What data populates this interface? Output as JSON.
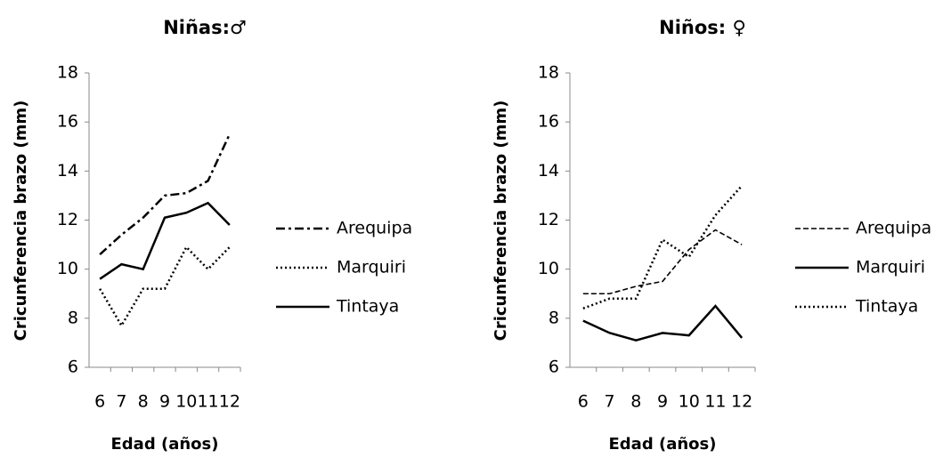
{
  "chart_data": [
    {
      "type": "line",
      "title": "Niñas:♂",
      "ylabel": "Cricunferencia brazo (mm)",
      "xlabel": "Edad (años)",
      "categories": [
        "6",
        "7",
        "8",
        "9",
        "10",
        "11",
        "12"
      ],
      "ylim": [
        6,
        18
      ],
      "yticks": [
        6,
        8,
        10,
        12,
        14,
        16,
        18
      ],
      "grid": false,
      "legend": "right",
      "series": [
        {
          "name": "Arequipa",
          "color": "#000000",
          "line_style": "dashdot",
          "values": [
            10.6,
            11.4,
            12.1,
            13.0,
            13.1,
            13.6,
            15.5
          ]
        },
        {
          "name": "Marquiri",
          "color": "#000000",
          "line_style": "dotted",
          "values": [
            9.2,
            7.7,
            9.2,
            9.2,
            10.9,
            10.0,
            10.9
          ]
        },
        {
          "name": "Tintaya",
          "color": "#000000",
          "line_style": "solid",
          "values": [
            9.6,
            10.2,
            10.0,
            12.1,
            12.3,
            12.7,
            11.8
          ]
        }
      ]
    },
    {
      "type": "line",
      "title": "Niños: ♀",
      "ylabel": "Cricunferencia brazo (mm)",
      "xlabel": "Edad (años)",
      "categories": [
        "6",
        "7",
        "8",
        "9",
        "10",
        "11",
        "12"
      ],
      "ylim": [
        6,
        18
      ],
      "yticks": [
        6,
        8,
        10,
        12,
        14,
        16,
        18
      ],
      "grid": false,
      "legend": "right",
      "series": [
        {
          "name": "Arequipa",
          "color": "#000000",
          "line_style": "dashed",
          "values": [
            9.0,
            9.0,
            9.3,
            9.5,
            10.8,
            11.6,
            11.0
          ]
        },
        {
          "name": "Marquiri",
          "color": "#000000",
          "line_style": "solid",
          "values": [
            7.9,
            7.4,
            7.1,
            7.4,
            7.3,
            8.5,
            7.2
          ]
        },
        {
          "name": "Tintaya",
          "color": "#000000",
          "line_style": "dotted",
          "values": [
            8.4,
            8.8,
            8.8,
            11.2,
            10.5,
            12.2,
            13.4
          ]
        }
      ]
    }
  ]
}
